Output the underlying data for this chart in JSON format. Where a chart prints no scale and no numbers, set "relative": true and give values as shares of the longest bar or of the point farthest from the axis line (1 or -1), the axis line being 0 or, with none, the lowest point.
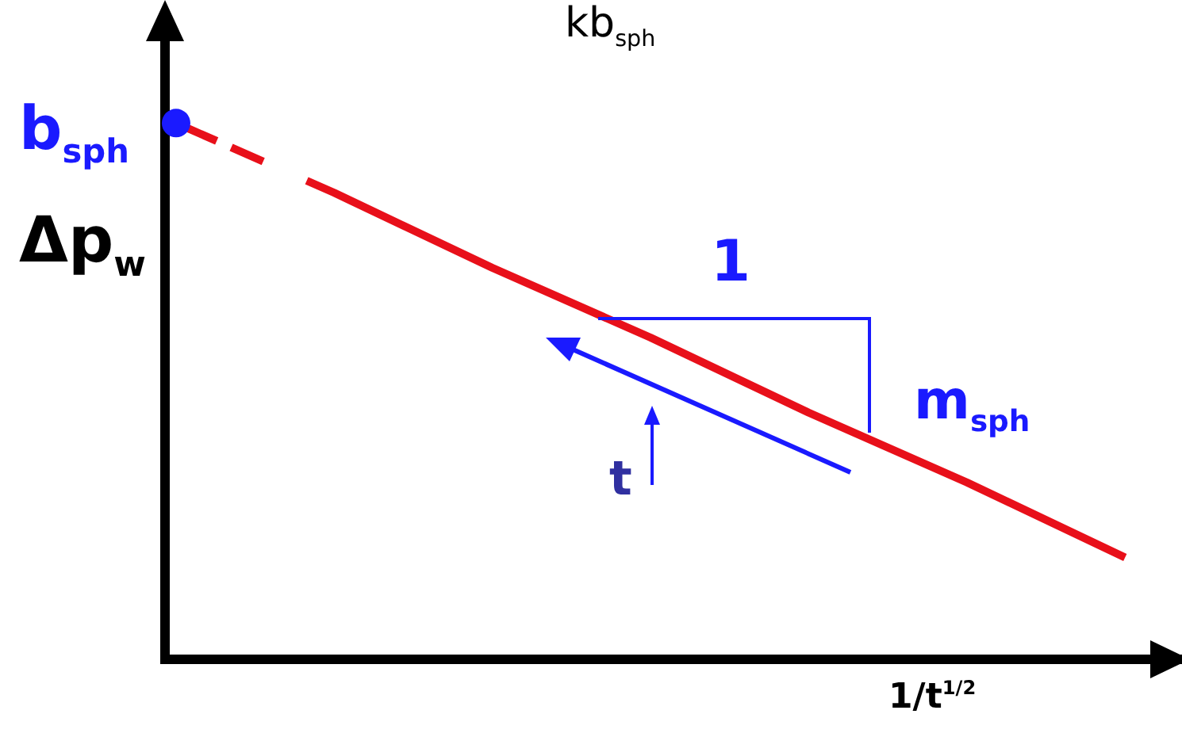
{
  "chart_data": {
    "type": "line",
    "relative": true,
    "legend": false,
    "grid": false,
    "marker": "none",
    "xlabel": "1/t$^{1/2}$",
    "ylabel": "Δp$_{w}$",
    "categories": [
      null,
      null,
      null,
      null,
      null,
      null,
      null
    ],
    "annotations": [
      "kb$_{sph}$",
      "b$_{sph}$",
      "1",
      "m$_{sph}$",
      "t"
    ],
    "series": [
      {
        "color": "#e8101a",
        "line_style": "dashed",
        "values": [
          1,
          0.87,
          0.73,
          0.6,
          0.46,
          0.33,
          0.19
        ]
      }
    ]
  }
}
